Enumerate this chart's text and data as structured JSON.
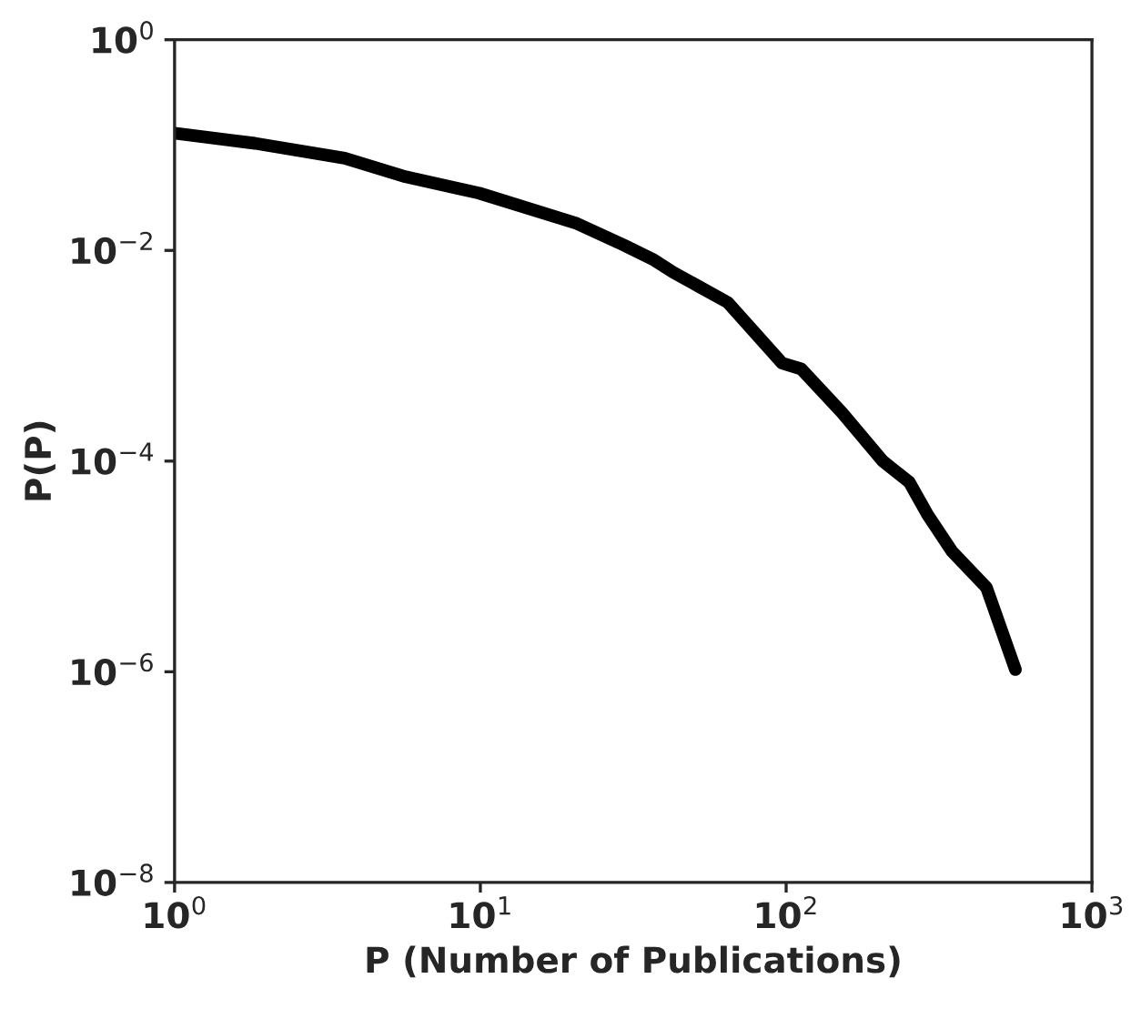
{
  "chart_data": {
    "type": "line",
    "xlabel": "P (Number of Publications)",
    "ylabel": "P(P)",
    "log": "xy",
    "line_style": "solid",
    "marker": "none",
    "grid": false,
    "x": [
      1,
      1.83,
      3.6,
      5.7,
      9.9,
      20.7,
      29.5,
      37,
      42.7,
      64.5,
      97,
      112,
      152,
      207,
      253,
      290,
      348,
      452,
      562
    ],
    "series": [
      {
        "color": "#000000",
        "values": [
          0.13,
          0.104,
          0.075,
          0.05,
          0.035,
          0.018,
          0.0112,
          0.0081,
          0.0062,
          0.0032,
          0.00085,
          0.00075,
          0.00029,
          0.0001,
          6.3e-05,
          3.1e-05,
          1.4e-05,
          6.3e-06,
          1.05e-06
        ]
      }
    ],
    "xlim": [
      1,
      1000
    ],
    "ylim": [
      1e-08,
      1
    ],
    "xticks": [
      {
        "value": 1,
        "label": "10$^{0}$"
      },
      {
        "value": 10,
        "label": "10$^{1}$"
      },
      {
        "value": 100,
        "label": "10$^{2}$"
      },
      {
        "value": 1000,
        "label": "10$^{3}$"
      }
    ],
    "yticks": [
      {
        "value": 1e-08,
        "label": "10$^{−8}$"
      },
      {
        "value": 1e-06,
        "label": "10$^{−6}$"
      },
      {
        "value": 0.0001,
        "label": "10$^{−4}$"
      },
      {
        "value": 0.01,
        "label": "10$^{−2}$"
      },
      {
        "value": 1,
        "label": "10$^{0}$"
      }
    ]
  }
}
